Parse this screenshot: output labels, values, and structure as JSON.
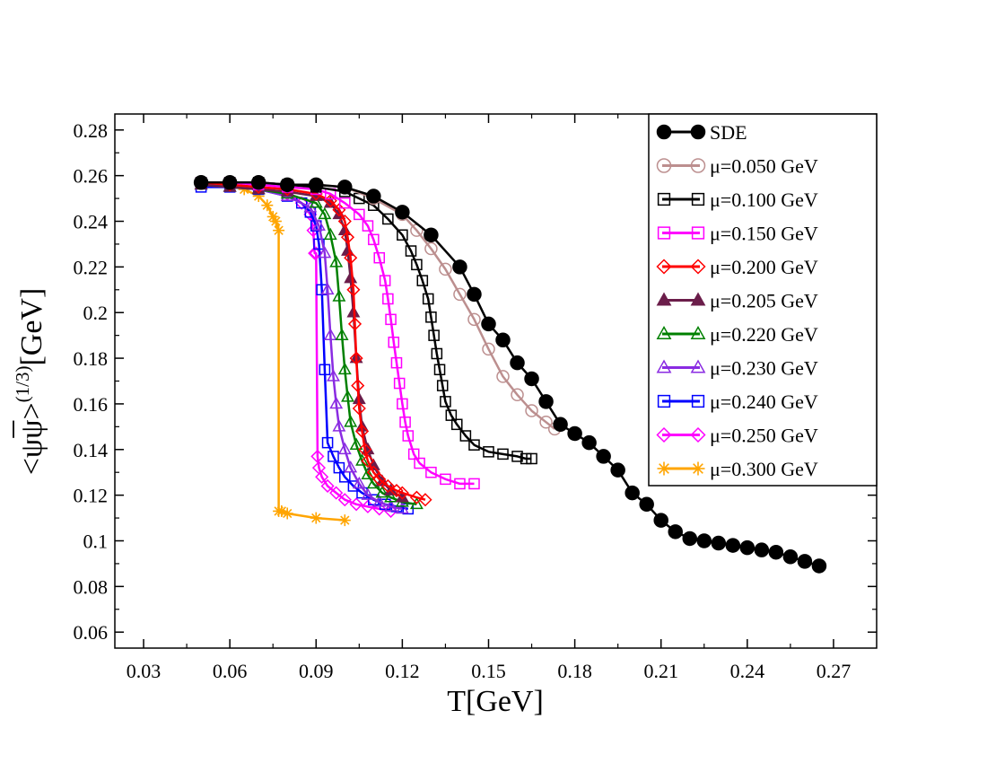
{
  "chart_data": {
    "type": "line",
    "xlabel": "T[GeV]",
    "ylabel": {
      "base": "<ψψ>",
      "overline": "ψ",
      "superscript": "(1/3)",
      "unit": "[GeV]"
    },
    "xlim": [
      0.02,
      0.285
    ],
    "ylim": [
      0.053,
      0.287
    ],
    "x_ticks": [
      "0.03",
      "0.06",
      "0.09",
      "0.12",
      "0.15",
      "0.18",
      "0.21",
      "0.24",
      "0.27"
    ],
    "y_ticks": [
      "0.06",
      "0.08",
      "0.1",
      "0.12",
      "0.14",
      "0.16",
      "0.18",
      "0.2",
      "0.22",
      "0.24",
      "0.26",
      "0.28"
    ],
    "grid": false,
    "legend_position": "top-right",
    "series": [
      {
        "name": "SDE",
        "color": "#000000",
        "marker": "circle-filled",
        "x": [
          0.05,
          0.06,
          0.07,
          0.08,
          0.09,
          0.1,
          0.11,
          0.12,
          0.13,
          0.14,
          0.145,
          0.15,
          0.155,
          0.16,
          0.165,
          0.17,
          0.175,
          0.18,
          0.185,
          0.19,
          0.195,
          0.2,
          0.205,
          0.21,
          0.215,
          0.22,
          0.225,
          0.23,
          0.235,
          0.24,
          0.245,
          0.25,
          0.255,
          0.26,
          0.265
        ],
        "y": [
          0.257,
          0.257,
          0.257,
          0.256,
          0.256,
          0.255,
          0.251,
          0.244,
          0.234,
          0.22,
          0.208,
          0.195,
          0.188,
          0.178,
          0.171,
          0.161,
          0.151,
          0.147,
          0.143,
          0.137,
          0.131,
          0.121,
          0.116,
          0.109,
          0.104,
          0.101,
          0.1,
          0.099,
          0.098,
          0.097,
          0.096,
          0.095,
          0.093,
          0.091,
          0.089
        ]
      },
      {
        "name": "μ=0.050 GeV",
        "color": "#bc8f8f",
        "marker": "circle-open",
        "x": [
          0.05,
          0.06,
          0.07,
          0.08,
          0.09,
          0.1,
          0.11,
          0.12,
          0.125,
          0.13,
          0.135,
          0.14,
          0.145,
          0.15,
          0.155,
          0.16,
          0.165,
          0.17,
          0.173
        ],
        "y": [
          0.257,
          0.257,
          0.257,
          0.256,
          0.256,
          0.255,
          0.25,
          0.243,
          0.236,
          0.228,
          0.219,
          0.208,
          0.197,
          0.184,
          0.172,
          0.164,
          0.157,
          0.152,
          0.149
        ]
      },
      {
        "name": "μ=0.100 GeV",
        "color": "#000000",
        "marker": "square-open",
        "x": [
          0.05,
          0.06,
          0.07,
          0.08,
          0.09,
          0.1,
          0.105,
          0.11,
          0.115,
          0.12,
          0.123,
          0.125,
          0.127,
          0.129,
          0.13,
          0.131,
          0.132,
          0.133,
          0.134,
          0.135,
          0.137,
          0.139,
          0.142,
          0.145,
          0.15,
          0.155,
          0.16,
          0.163,
          0.165
        ],
        "y": [
          0.257,
          0.257,
          0.257,
          0.256,
          0.255,
          0.253,
          0.25,
          0.247,
          0.241,
          0.234,
          0.227,
          0.221,
          0.214,
          0.206,
          0.198,
          0.19,
          0.182,
          0.175,
          0.168,
          0.161,
          0.155,
          0.151,
          0.146,
          0.142,
          0.139,
          0.138,
          0.137,
          0.136,
          0.136
        ]
      },
      {
        "name": "μ=0.150 GeV",
        "color": "#ff00ff",
        "marker": "square-open",
        "x": [
          0.05,
          0.06,
          0.07,
          0.08,
          0.09,
          0.095,
          0.1,
          0.105,
          0.108,
          0.11,
          0.112,
          0.114,
          0.115,
          0.116,
          0.117,
          0.118,
          0.119,
          0.12,
          0.121,
          0.122,
          0.124,
          0.126,
          0.13,
          0.135,
          0.14,
          0.145
        ],
        "y": [
          0.257,
          0.257,
          0.256,
          0.255,
          0.254,
          0.252,
          0.248,
          0.243,
          0.238,
          0.232,
          0.224,
          0.214,
          0.206,
          0.197,
          0.187,
          0.178,
          0.169,
          0.16,
          0.152,
          0.146,
          0.138,
          0.134,
          0.13,
          0.127,
          0.125,
          0.125
        ]
      },
      {
        "name": "μ=0.200 GeV",
        "color": "#ff0000",
        "marker": "diamond-open",
        "x": [
          0.05,
          0.06,
          0.07,
          0.08,
          0.09,
          0.095,
          0.098,
          0.1,
          0.101,
          0.102,
          0.103,
          0.1035,
          0.104,
          0.1045,
          0.105,
          0.106,
          0.107,
          0.108,
          0.11,
          0.112,
          0.115,
          0.118,
          0.12,
          0.125,
          0.128
        ],
        "y": [
          0.257,
          0.256,
          0.255,
          0.254,
          0.252,
          0.249,
          0.245,
          0.24,
          0.233,
          0.224,
          0.21,
          0.195,
          0.18,
          0.168,
          0.158,
          0.148,
          0.14,
          0.135,
          0.13,
          0.127,
          0.124,
          0.122,
          0.121,
          0.119,
          0.118
        ]
      },
      {
        "name": "μ=0.205 GeV",
        "color": "#6b1d4a",
        "marker": "triangle-filled",
        "x": [
          0.05,
          0.06,
          0.07,
          0.08,
          0.09,
          0.095,
          0.098,
          0.1,
          0.101,
          0.102,
          0.103,
          0.104,
          0.105,
          0.106,
          0.108,
          0.11,
          0.113,
          0.116,
          0.12
        ],
        "y": [
          0.256,
          0.255,
          0.254,
          0.253,
          0.251,
          0.248,
          0.243,
          0.236,
          0.227,
          0.215,
          0.2,
          0.18,
          0.162,
          0.15,
          0.14,
          0.133,
          0.126,
          0.122,
          0.119
        ]
      },
      {
        "name": "μ=0.220 GeV",
        "color": "#008000",
        "marker": "triangle-open",
        "x": [
          0.05,
          0.06,
          0.07,
          0.08,
          0.09,
          0.093,
          0.095,
          0.097,
          0.098,
          0.099,
          0.1,
          0.101,
          0.102,
          0.104,
          0.106,
          0.108,
          0.11,
          0.113,
          0.116,
          0.12,
          0.125
        ],
        "y": [
          0.256,
          0.255,
          0.254,
          0.252,
          0.248,
          0.243,
          0.234,
          0.222,
          0.207,
          0.19,
          0.175,
          0.163,
          0.152,
          0.142,
          0.135,
          0.129,
          0.125,
          0.121,
          0.119,
          0.117,
          0.116
        ]
      },
      {
        "name": "μ=0.230 GeV",
        "color": "#8a2be2",
        "marker": "triangle-open",
        "x": [
          0.05,
          0.06,
          0.07,
          0.08,
          0.088,
          0.091,
          0.093,
          0.094,
          0.095,
          0.096,
          0.097,
          0.098,
          0.1,
          0.102,
          0.105,
          0.108,
          0.112,
          0.116,
          0.12
        ],
        "y": [
          0.256,
          0.255,
          0.254,
          0.251,
          0.246,
          0.238,
          0.226,
          0.21,
          0.19,
          0.172,
          0.16,
          0.15,
          0.14,
          0.132,
          0.125,
          0.12,
          0.117,
          0.115,
          0.114
        ]
      },
      {
        "name": "μ=0.240 GeV",
        "color": "#0000ff",
        "marker": "square-open",
        "x": [
          0.05,
          0.06,
          0.07,
          0.08,
          0.085,
          0.088,
          0.09,
          0.091,
          0.092,
          0.093,
          0.094,
          0.096,
          0.098,
          0.1,
          0.103,
          0.106,
          0.11,
          0.114,
          0.118,
          0.122
        ],
        "y": [
          0.255,
          0.255,
          0.254,
          0.251,
          0.248,
          0.244,
          0.238,
          0.23,
          0.21,
          0.175,
          0.143,
          0.137,
          0.132,
          0.128,
          0.124,
          0.121,
          0.118,
          0.116,
          0.115,
          0.114
        ]
      },
      {
        "name": "μ=0.250 GeV",
        "color": "#ff00ff",
        "marker": "diamond-open",
        "x": [
          0.05,
          0.06,
          0.07,
          0.08,
          0.085,
          0.088,
          0.089,
          0.0895,
          0.09,
          0.0905,
          0.091,
          0.092,
          0.094,
          0.097,
          0.1,
          0.104,
          0.108,
          0.112,
          0.116
        ],
        "y": [
          0.257,
          0.256,
          0.255,
          0.252,
          0.248,
          0.243,
          0.236,
          0.226,
          0.226,
          0.137,
          0.132,
          0.128,
          0.124,
          0.121,
          0.118,
          0.116,
          0.115,
          0.114,
          0.113
        ]
      },
      {
        "name": "μ=0.300 GeV",
        "color": "#ffa500",
        "marker": "asterisk",
        "x": [
          0.05,
          0.06,
          0.065,
          0.07,
          0.073,
          0.075,
          0.076,
          0.077,
          0.077,
          0.078,
          0.08,
          0.09,
          0.1
        ],
        "y": [
          0.257,
          0.256,
          0.254,
          0.251,
          0.247,
          0.242,
          0.24,
          0.236,
          0.113,
          0.113,
          0.112,
          0.11,
          0.109
        ]
      }
    ]
  }
}
